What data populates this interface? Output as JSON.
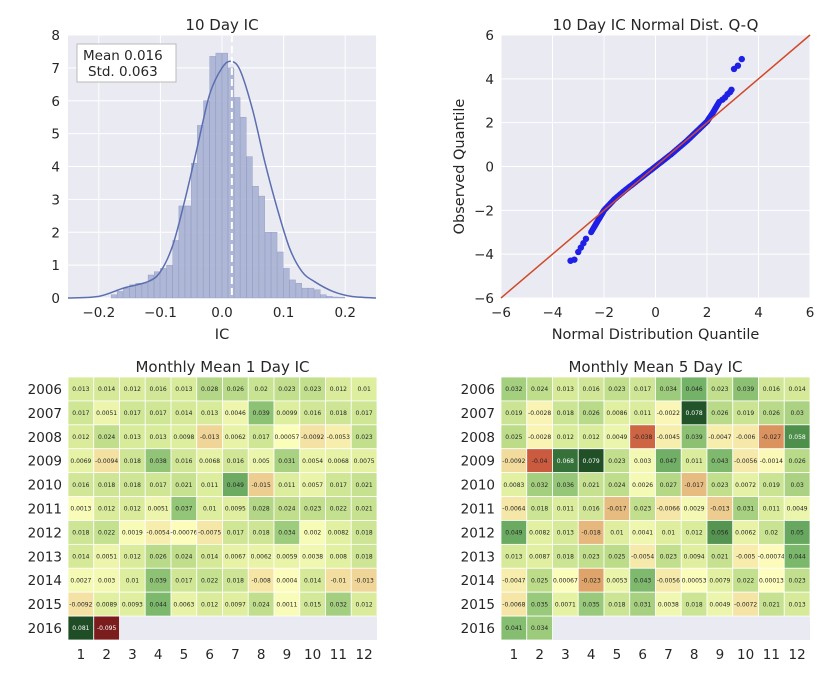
{
  "chart_data": [
    {
      "type": "histogram",
      "title": "10 Day IC",
      "xlabel": "IC",
      "ylabel": "",
      "xlim": [
        -0.25,
        0.25
      ],
      "ylim": [
        0,
        8
      ],
      "xticks": [
        "−0.2",
        "−0.1",
        "0.0",
        "0.1",
        "0.2"
      ],
      "xtick_values": [
        -0.2,
        -0.1,
        0.0,
        0.1,
        0.2
      ],
      "yticks": [
        "0",
        "1",
        "2",
        "3",
        "4",
        "5",
        "6",
        "7",
        "8"
      ],
      "bin_width": 0.01,
      "bin_starts": [
        -0.18,
        -0.17,
        -0.16,
        -0.15,
        -0.14,
        -0.13,
        -0.12,
        -0.11,
        -0.1,
        -0.09,
        -0.08,
        -0.07,
        -0.06,
        -0.05,
        -0.04,
        -0.03,
        -0.02,
        -0.01,
        0.0,
        0.01,
        0.02,
        0.03,
        0.04,
        0.05,
        0.06,
        0.07,
        0.08,
        0.09,
        0.1,
        0.11,
        0.12,
        0.13,
        0.14,
        0.15,
        0.16,
        0.17,
        0.18,
        0.19
      ],
      "densities": [
        0.1,
        0.2,
        0.3,
        0.4,
        0.45,
        0.45,
        0.7,
        0.8,
        0.9,
        1.0,
        1.75,
        2.8,
        2.8,
        4.1,
        5.25,
        6.0,
        7.35,
        7.45,
        7.45,
        7.0,
        6.1,
        5.5,
        4.3,
        3.4,
        3.1,
        2.0,
        2.0,
        1.4,
        0.9,
        0.55,
        0.45,
        0.3,
        0.3,
        0.25,
        0.1,
        0.05,
        0.03,
        0.02
      ],
      "kde_x": [
        -0.25,
        -0.2,
        -0.16,
        -0.12,
        -0.1,
        -0.08,
        -0.06,
        -0.04,
        -0.02,
        0.0,
        0.015,
        0.03,
        0.05,
        0.07,
        0.09,
        0.11,
        0.13,
        0.15,
        0.18,
        0.21,
        0.25
      ],
      "kde_y": [
        0.0,
        0.05,
        0.3,
        0.5,
        0.8,
        1.6,
        3.0,
        4.6,
        6.2,
        7.0,
        7.2,
        6.9,
        5.7,
        4.1,
        2.7,
        1.5,
        0.8,
        0.5,
        0.2,
        0.05,
        0.0
      ],
      "mean_line": 0.016,
      "legend": {
        "mean_label": "Mean 0.016",
        "std_label": "Std. 0.063",
        "placement": "top-left"
      },
      "colors": {
        "bar": "#a9b1d4",
        "kde": "#5b6fb0",
        "mean_line": "#ffffff",
        "background": "#eaeaf2"
      }
    },
    {
      "type": "scatter",
      "title": "10 Day IC Normal Dist. Q-Q",
      "xlabel": "Normal Distribution Quantile",
      "ylabel": "Observed Quantile",
      "xlim": [
        -6,
        6
      ],
      "ylim": [
        -6,
        6
      ],
      "xticks": [
        "−6",
        "−4",
        "−2",
        "0",
        "2",
        "4",
        "6"
      ],
      "yticks": [
        "−6",
        "−4",
        "−2",
        "0",
        "2",
        "4",
        "6"
      ],
      "reference_line": {
        "from": [
          -6,
          -6
        ],
        "to": [
          6,
          6
        ]
      },
      "curve_points": [
        [
          -2.5,
          -3.0
        ],
        [
          -2.2,
          -2.4
        ],
        [
          -2.0,
          -2.0
        ],
        [
          -1.6,
          -1.5
        ],
        [
          -1.2,
          -1.1
        ],
        [
          -0.6,
          -0.55
        ],
        [
          0,
          0
        ],
        [
          0.6,
          0.55
        ],
        [
          1.2,
          1.15
        ],
        [
          1.6,
          1.6
        ],
        [
          2.0,
          2.05
        ],
        [
          2.2,
          2.4
        ],
        [
          2.5,
          3.0
        ]
      ],
      "outliers": [
        [
          -3.3,
          -4.3
        ],
        [
          -3.15,
          -4.25
        ],
        [
          -3.0,
          -3.9
        ],
        [
          -2.9,
          -3.7
        ],
        [
          -2.8,
          -3.5
        ],
        [
          -2.7,
          -3.3
        ],
        [
          2.6,
          3.05
        ],
        [
          2.7,
          3.15
        ],
        [
          2.8,
          3.3
        ],
        [
          2.9,
          3.4
        ],
        [
          2.95,
          3.5
        ],
        [
          3.05,
          4.45
        ],
        [
          3.2,
          4.6
        ],
        [
          3.35,
          4.9
        ]
      ],
      "colors": {
        "points": "#1f1fe6",
        "line": "#d04a2a",
        "background": "#eaeaf2"
      }
    },
    {
      "type": "heatmap",
      "title": "Monthly Mean 1 Day IC",
      "rows": [
        "2006",
        "2007",
        "2008",
        "2009",
        "2010",
        "2011",
        "2012",
        "2013",
        "2014",
        "2015",
        "2016"
      ],
      "cols": [
        "1",
        "2",
        "3",
        "4",
        "5",
        "6",
        "7",
        "8",
        "9",
        "10",
        "11",
        "12"
      ],
      "values": [
        [
          "0.013",
          "0.014",
          "0.012",
          "0.016",
          "0.013",
          "0.028",
          "0.026",
          "0.02",
          "0.023",
          "0.023",
          "0.012",
          "0.01"
        ],
        [
          "0.017",
          "0.0051",
          "0.017",
          "0.017",
          "0.014",
          "0.013",
          "0.0046",
          "0.039",
          "0.0099",
          "0.016",
          "0.018",
          "0.017"
        ],
        [
          "0.012",
          "0.024",
          "0.013",
          "0.013",
          "0.0098",
          "-0.013",
          "0.0062",
          "0.017",
          "0.00057",
          "-0.0092",
          "-0.0053",
          "0.023"
        ],
        [
          "0.0069",
          "-0.0094",
          "0.018",
          "0.038",
          "0.016",
          "0.0068",
          "0.016",
          "0.005",
          "0.031",
          "0.0054",
          "0.0068",
          "0.0075"
        ],
        [
          "0.016",
          "0.018",
          "0.018",
          "0.017",
          "0.021",
          "0.011",
          "0.049",
          "-0.015",
          "0.011",
          "0.0057",
          "0.017",
          "0.021"
        ],
        [
          "0.0013",
          "0.012",
          "0.012",
          "0.0051",
          "0.037",
          "0.01",
          "0.0095",
          "0.028",
          "0.024",
          "0.023",
          "0.022",
          "0.021"
        ],
        [
          "0.018",
          "0.022",
          "0.0019",
          "-0.0054",
          "-0.00076",
          "-0.0075",
          "0.017",
          "0.018",
          "0.034",
          "0.002",
          "0.0082",
          "0.018"
        ],
        [
          "0.014",
          "0.0051",
          "0.012",
          "0.026",
          "0.024",
          "0.014",
          "0.0067",
          "0.0062",
          "0.0059",
          "0.0038",
          "0.008",
          "0.018"
        ],
        [
          "0.0027",
          "0.003",
          "0.01",
          "0.039",
          "0.017",
          "0.022",
          "0.018",
          "-0.008",
          "0.0004",
          "0.014",
          "-0.01",
          "-0.013"
        ],
        [
          "-0.0092",
          "0.0089",
          "0.0093",
          "0.044",
          "0.0063",
          "0.012",
          "0.0097",
          "0.024",
          "0.0011",
          "0.015",
          "0.032",
          "0.012"
        ],
        [
          "0.081",
          "-0.095",
          null,
          null,
          null,
          null,
          null,
          null,
          null,
          null,
          null,
          null
        ]
      ],
      "color_range": [
        -0.095,
        0.081
      ]
    },
    {
      "type": "heatmap",
      "title": "Monthly Mean 5 Day IC",
      "rows": [
        "2006",
        "2007",
        "2008",
        "2009",
        "2010",
        "2011",
        "2012",
        "2013",
        "2014",
        "2015",
        "2016"
      ],
      "cols": [
        "1",
        "2",
        "3",
        "4",
        "5",
        "6",
        "7",
        "8",
        "9",
        "10",
        "11",
        "12"
      ],
      "values": [
        [
          "0.032",
          "0.024",
          "0.013",
          "0.016",
          "0.023",
          "0.017",
          "0.034",
          "0.046",
          "0.023",
          "0.039",
          "0.016",
          "0.014"
        ],
        [
          "0.019",
          "-0.0028",
          "0.018",
          "0.026",
          "0.0086",
          "0.011",
          "-0.0022",
          "0.078",
          "0.026",
          "0.019",
          "0.026",
          "0.03"
        ],
        [
          "0.025",
          "-0.0028",
          "0.012",
          "0.012",
          "0.0049",
          "-0.038",
          "-0.0045",
          "0.039",
          "-0.0047",
          "-0.006",
          "-0.027",
          "0.058"
        ],
        [
          "-0.0092",
          "-0.04",
          "0.068",
          "0.079",
          "0.023",
          "0.003",
          "0.047",
          "0.011",
          "0.043",
          "-0.0056",
          "-0.0014",
          "0.026"
        ],
        [
          "0.0083",
          "0.032",
          "0.036",
          "0.021",
          "0.024",
          "0.0026",
          "0.027",
          "-0.017",
          "0.023",
          "0.0072",
          "0.019",
          "0.03"
        ],
        [
          "-0.0064",
          "0.018",
          "0.011",
          "0.016",
          "-0.017",
          "0.023",
          "-0.0066",
          "0.0029",
          "-0.013",
          "0.031",
          "0.011",
          "0.0049"
        ],
        [
          "0.049",
          "0.0082",
          "0.013",
          "-0.018",
          "0.01",
          "0.0041",
          "0.01",
          "0.012",
          "0.056",
          "0.0062",
          "0.02",
          "0.05"
        ],
        [
          "0.013",
          "0.0087",
          "0.018",
          "0.023",
          "0.025",
          "-0.0054",
          "0.023",
          "0.0094",
          "0.021",
          "-0.005",
          "-0.00074",
          "0.044"
        ],
        [
          "-0.0047",
          "0.025",
          "0.00067",
          "-0.023",
          "0.0053",
          "0.043",
          "-0.0056",
          "0.00053",
          "0.0079",
          "0.022",
          "0.00013",
          "0.023"
        ],
        [
          "-0.0068",
          "0.035",
          "0.0071",
          "0.035",
          "0.018",
          "0.031",
          "0.0038",
          "0.018",
          "0.0049",
          "-0.0072",
          "0.021",
          "0.013"
        ],
        [
          "0.041",
          "0.034",
          null,
          null,
          null,
          null,
          null,
          null,
          null,
          null,
          null,
          null
        ]
      ],
      "color_range": [
        -0.08,
        0.08
      ]
    }
  ]
}
